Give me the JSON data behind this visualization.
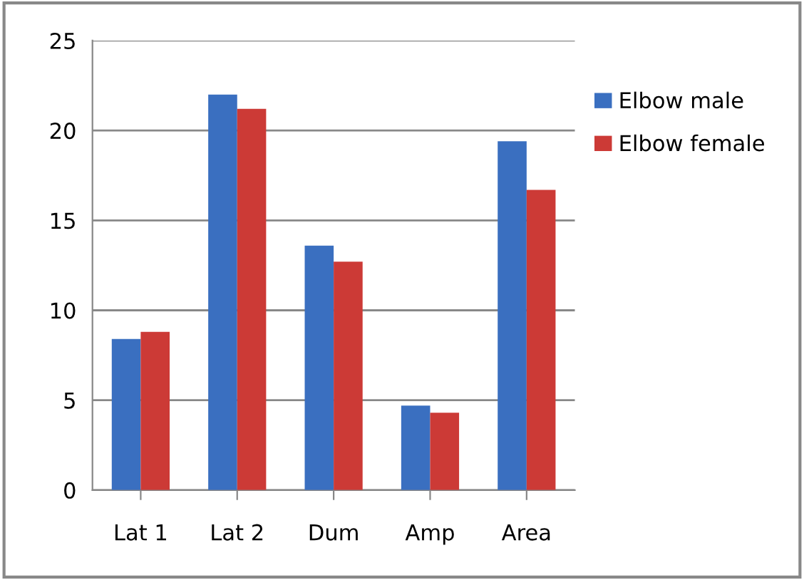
{
  "chart_data": {
    "type": "bar",
    "categories": [
      "Lat 1",
      "Lat 2",
      "Dum",
      "Amp",
      "Area"
    ],
    "series": [
      {
        "name": "Elbow male",
        "color": "#3a6fc0",
        "values": [
          8.4,
          22.0,
          13.6,
          4.7,
          19.4
        ]
      },
      {
        "name": "Elbow female",
        "color": "#cc3a36",
        "values": [
          8.8,
          21.2,
          12.7,
          4.3,
          16.7
        ]
      }
    ],
    "ylim": [
      0,
      25
    ],
    "yticks": [
      0,
      5,
      10,
      15,
      20,
      25
    ],
    "grid": "y",
    "legend": "top right"
  }
}
